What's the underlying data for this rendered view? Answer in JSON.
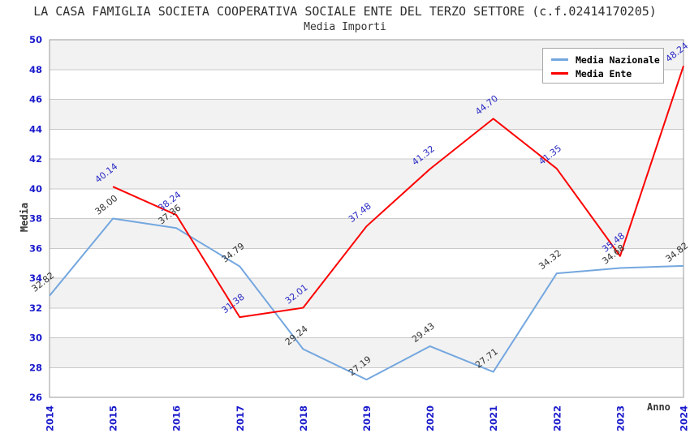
{
  "chart_data": {
    "type": "line",
    "title": "LA CASA FAMIGLIA SOCIETA COOPERATIVA SOCIALE ENTE DEL TERZO SETTORE (c.f.02414170205)",
    "subtitle": "Media Importi",
    "xlabel": "Anno",
    "ylabel": "Media",
    "ylim": [
      26,
      50
    ],
    "ytick_step": 2,
    "yticks": [
      26,
      28,
      30,
      32,
      34,
      36,
      38,
      40,
      42,
      44,
      46,
      48,
      50
    ],
    "categories": [
      "2014",
      "2015",
      "2016",
      "2017",
      "2018",
      "2019",
      "2020",
      "2021",
      "2022",
      "2023",
      "2024"
    ],
    "series": [
      {
        "name": "Media Nazionale",
        "color": "#74a7df",
        "label_color": "#333333",
        "values": [
          32.82,
          38.0,
          37.36,
          34.79,
          29.24,
          27.19,
          29.43,
          27.71,
          34.32,
          34.68,
          34.82
        ]
      },
      {
        "name": "Media Ente",
        "color": "#fb0000",
        "label_color": "#2a2ac4",
        "values": [
          null,
          40.14,
          38.24,
          31.38,
          32.01,
          37.48,
          41.32,
          44.7,
          41.35,
          35.48,
          48.24
        ]
      }
    ],
    "legend_position": "top-right",
    "grid": "horizontal",
    "colors": {
      "axis_ticks": "#1a1acc",
      "gridline": "#c9c9c9",
      "plot_border": "#999999",
      "band_fill": "#f2f2f2",
      "band_alt_fill": "#ffffff",
      "background": "#ffffff"
    }
  }
}
